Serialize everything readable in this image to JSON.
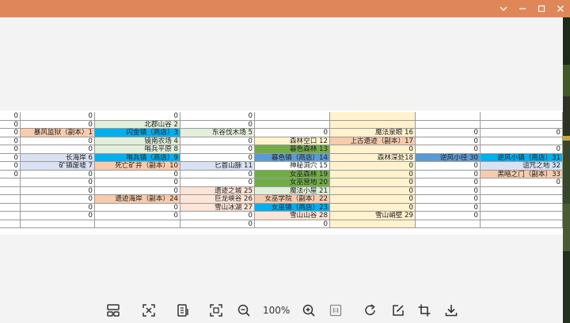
{
  "colors": {
    "titlebar": "#e0875a",
    "tan": "#f8cbad",
    "blue": "#00b0f0",
    "green": "#70ad47",
    "paleGreen": "#e2efda",
    "paleOrange": "#fce4d6",
    "paleYellow": "#fff2cc",
    "steel": "#5b9bd5",
    "lavender": "#d9e1f2"
  },
  "window": {
    "controls": [
      {
        "name": "chevron-down-icon"
      },
      {
        "name": "minimize-icon"
      },
      {
        "name": "maximize-icon"
      },
      {
        "name": "close-icon"
      }
    ]
  },
  "sheet": {
    "rows": [
      [
        {
          "t": "0"
        },
        {
          "t": "0"
        },
        {
          "t": "0"
        },
        {
          "t": "0"
        },
        {
          "t": ""
        },
        {
          "t": "",
          "c": "paleYellow"
        },
        {
          "t": ""
        },
        {
          "t": ""
        }
      ],
      [
        {
          "t": "0"
        },
        {
          "t": "0"
        },
        {
          "t": "北郡山谷 2",
          "c": "paleGreen"
        },
        {
          "t": "0"
        },
        {
          "t": ""
        },
        {
          "t": "",
          "c": "paleYellow"
        },
        {
          "t": ""
        },
        {
          "t": ""
        }
      ],
      [
        {
          "t": "0"
        },
        {
          "t": "暴风监狱（副本）1",
          "c": "tan"
        },
        {
          "t": "闪金镇（商店）3",
          "c": "blue"
        },
        {
          "t": "东谷伐木场 5",
          "c": "paleGreen"
        },
        {
          "t": "0"
        },
        {
          "t": "魔法泉眼 16",
          "c": "paleYellow"
        },
        {
          "t": "0"
        },
        {
          "t": "0"
        }
      ],
      [
        {
          "t": "0"
        },
        {
          "t": "0"
        },
        {
          "t": "镜南农场 4",
          "c": "paleGreen"
        },
        {
          "t": "0"
        },
        {
          "t": "森林空口 12",
          "c": "paleYellow"
        },
        {
          "t": "上古遗迹（副本）17",
          "c": "tan"
        },
        {
          "t": "0"
        },
        {
          "t": ""
        }
      ],
      [
        {
          "t": "0"
        },
        {
          "t": "0"
        },
        {
          "t": "哨兵平原 8",
          "c": "paleGreen"
        },
        {
          "t": "0"
        },
        {
          "t": "暮色森林 13",
          "c": "green"
        },
        {
          "t": "0",
          "c": "paleYellow"
        },
        {
          "t": "0"
        },
        {
          "t": "0"
        }
      ],
      [
        {
          "t": "0"
        },
        {
          "t": "长海岸 6",
          "c": "lavender"
        },
        {
          "t": "哨兵镇（商店）9",
          "c": "blue"
        },
        {
          "t": "0"
        },
        {
          "t": "暮色镇（商店）14",
          "c": "steel"
        },
        {
          "t": "森林深处18",
          "c": "paleYellow"
        },
        {
          "t": "逆风小径 30",
          "c": "steel"
        },
        {
          "t": "逆风小镇（商店）31",
          "c": "blue"
        }
      ],
      [
        {
          "t": "0"
        },
        {
          "t": "矿镇废墟 7",
          "c": "lavender"
        },
        {
          "t": "死亡矿井（副本）10",
          "c": "tan"
        },
        {
          "t": "匕首山脉 11",
          "c": "lavender"
        },
        {
          "t": "神秘洞穴 15"
        },
        {
          "t": "0",
          "c": "paleYellow"
        },
        {
          "t": "0"
        },
        {
          "t": "诅咒之地 32",
          "c": "lavender"
        }
      ],
      [
        {
          "t": "0"
        },
        {
          "t": "0"
        },
        {
          "t": "0"
        },
        {
          "t": "0"
        },
        {
          "t": "女巫森林 19",
          "c": "green"
        },
        {
          "t": "0",
          "c": "paleYellow"
        },
        {
          "t": "0"
        },
        {
          "t": "黑暗之门（副本）33",
          "c": "tan"
        }
      ],
      [
        {
          "t": ""
        },
        {
          "t": "0"
        },
        {
          "t": "0"
        },
        {
          "t": "0"
        },
        {
          "t": "女巫营地 20",
          "c": "green"
        },
        {
          "t": "0",
          "c": "paleYellow"
        },
        {
          "t": "0"
        },
        {
          "t": "0"
        }
      ],
      [
        {
          "t": ""
        },
        {
          "t": "0"
        },
        {
          "t": "0"
        },
        {
          "t": "遗迹之城 25",
          "c": "paleOrange"
        },
        {
          "t": "魔法小屋 21",
          "c": "paleGreen"
        },
        {
          "t": "0",
          "c": "paleYellow"
        },
        {
          "t": "0"
        },
        {
          "t": ""
        }
      ],
      [
        {
          "t": ""
        },
        {
          "t": "0"
        },
        {
          "t": "遗迹海岸（副本）24",
          "c": "tan"
        },
        {
          "t": "巨龙峡谷 26",
          "c": "paleOrange"
        },
        {
          "t": "女巫学院（副本）22",
          "c": "tan"
        },
        {
          "t": "0",
          "c": "paleYellow"
        },
        {
          "t": "0"
        },
        {
          "t": ""
        }
      ],
      [
        {
          "t": ""
        },
        {
          "t": "0"
        },
        {
          "t": "0"
        },
        {
          "t": "雪山冰湖 27",
          "c": "paleOrange"
        },
        {
          "t": "女巫镇（商店）23",
          "c": "blue"
        },
        {
          "t": "0",
          "c": "paleYellow"
        },
        {
          "t": "0"
        },
        {
          "t": ""
        }
      ],
      [
        {
          "t": ""
        },
        {
          "t": "0"
        },
        {
          "t": "0"
        },
        {
          "t": "0"
        },
        {
          "t": "雪山山谷 28",
          "c": "paleOrange"
        },
        {
          "t": "雪山峭壁 29",
          "c": "paleYellow"
        },
        {
          "t": "0"
        },
        {
          "t": ""
        }
      ],
      [
        {
          "t": ""
        },
        {
          "t": ""
        },
        {
          "t": ""
        },
        {
          "t": "0"
        },
        {
          "t": "0"
        },
        {
          "t": "",
          "c": "paleYellow"
        },
        {
          "t": ""
        },
        {
          "t": ""
        }
      ]
    ]
  },
  "toolbar": {
    "zoom_label": "100%",
    "buttons": [
      {
        "name": "thumbnails-icon"
      },
      {
        "name": "fit-screen-icon"
      },
      {
        "name": "fit-width-icon"
      },
      {
        "name": "fullscreen-icon"
      },
      {
        "name": "zoom-out-icon"
      },
      {
        "name": "zoom-in-icon"
      },
      {
        "name": "actual-size-icon"
      },
      {
        "name": "rotate-icon"
      },
      {
        "name": "edit-icon"
      },
      {
        "name": "crop-icon"
      },
      {
        "name": "download-icon"
      }
    ]
  }
}
